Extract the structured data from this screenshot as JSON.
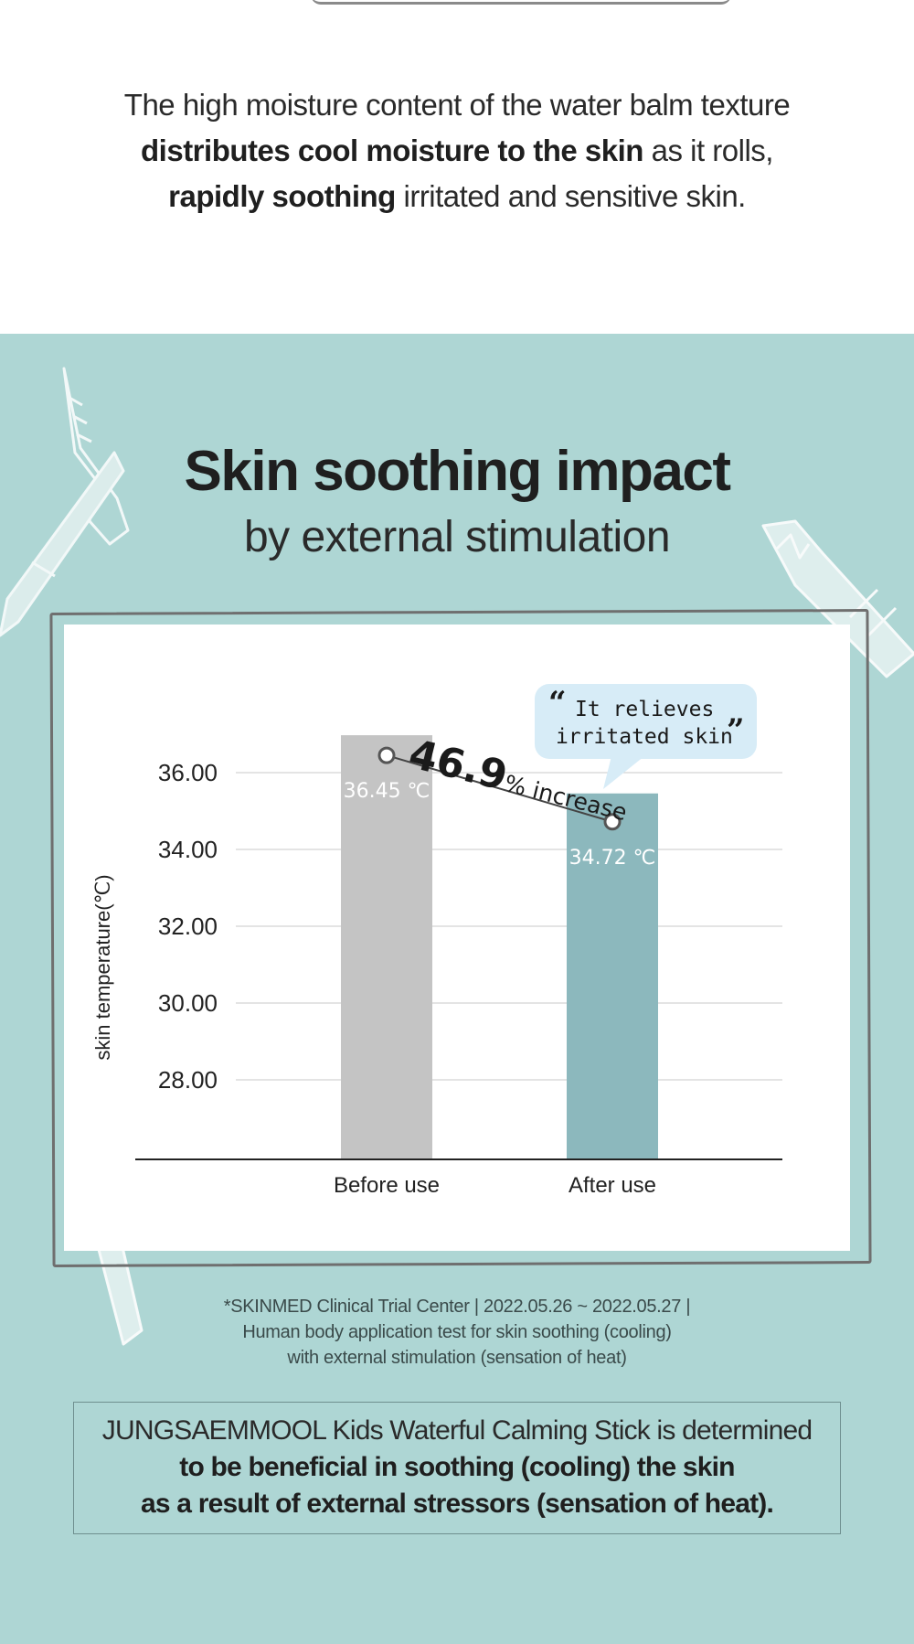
{
  "intro": {
    "line1": "The high moisture content of the water balm texture",
    "line2_bold": "distributes cool moisture to the skin",
    "line2_rest": " as it rolls,",
    "line3_bold": "rapidly soothing",
    "line3_rest": " irritated and sensitive skin."
  },
  "heading": {
    "title": "Skin soothing impact",
    "subtitle": "by external stimulation"
  },
  "colors": {
    "teal_background": "#aed6d4",
    "before_bar": "#c4c4c4",
    "after_bar": "#8cb8bd",
    "bubble": "#d7ecf7"
  },
  "chart_data": {
    "type": "bar",
    "categories": [
      "Before use",
      "After use"
    ],
    "values": [
      36.45,
      34.72
    ],
    "data_labels": [
      "36.45 ℃",
      "34.72 ℃"
    ],
    "ylabel": "skin temperature(℃)",
    "yticks": [
      "28.00",
      "30.00",
      "32.00",
      "34.00",
      "36.00"
    ],
    "ylim": [
      26,
      37
    ],
    "grid": true,
    "annotation": {
      "value": "46.9",
      "suffix": "% increase"
    },
    "bubble": {
      "line1": "It relieves",
      "line2": "irritated skin"
    }
  },
  "footnote": {
    "line1": "*SKINMED Clinical Trial Center | 2022.05.26 ~ 2022.05.27 |",
    "line2": "Human body application test for skin soothing (cooling)",
    "line3": "with external stimulation (sensation of heat)"
  },
  "summary": {
    "line1": "JUNGSAEMMOOL Kids Waterful Calming Stick is determined",
    "line2": "to be beneficial in soothing (cooling) the skin",
    "line3": "as a result of external stressors (sensation of heat)."
  }
}
